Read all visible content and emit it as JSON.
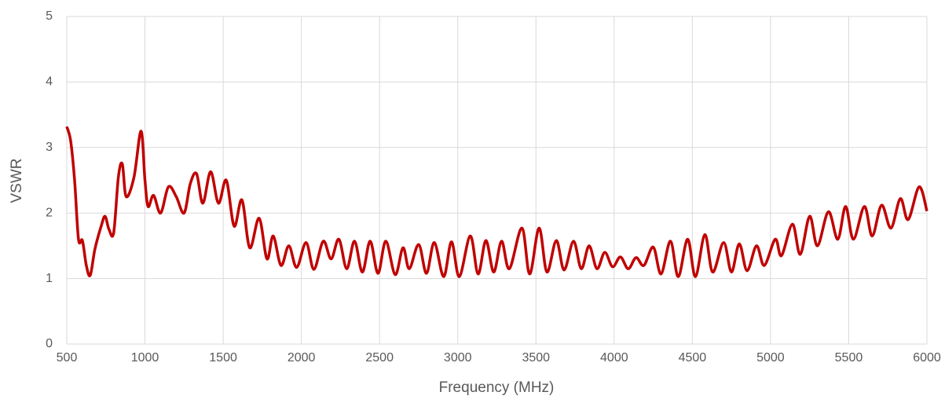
{
  "chart_data": {
    "type": "line",
    "x_label": "Frequency (MHz)",
    "y_label": "VSWR",
    "x": [
      500,
      525,
      550,
      575,
      600,
      625,
      650,
      680,
      720,
      745,
      770,
      800,
      830,
      855,
      880,
      930,
      975,
      1000,
      1020,
      1055,
      1100,
      1150,
      1200,
      1250,
      1290,
      1330,
      1370,
      1420,
      1470,
      1520,
      1570,
      1620,
      1670,
      1730,
      1780,
      1820,
      1870,
      1920,
      1970,
      2030,
      2080,
      2140,
      2190,
      2240,
      2290,
      2340,
      2390,
      2440,
      2490,
      2540,
      2600,
      2650,
      2690,
      2750,
      2800,
      2850,
      2910,
      2960,
      3010,
      3080,
      3130,
      3180,
      3230,
      3280,
      3330,
      3410,
      3460,
      3520,
      3570,
      3630,
      3680,
      3740,
      3790,
      3840,
      3890,
      3940,
      3990,
      4040,
      4090,
      4140,
      4190,
      4250,
      4300,
      4360,
      4410,
      4470,
      4520,
      4580,
      4630,
      4700,
      4750,
      4800,
      4850,
      4910,
      4960,
      5030,
      5070,
      5140,
      5190,
      5250,
      5300,
      5370,
      5430,
      5480,
      5530,
      5600,
      5650,
      5710,
      5770,
      5830,
      5880,
      5950,
      6000
    ],
    "series": [
      {
        "name": "VSWR",
        "color": "#c00000",
        "values": [
          3.32,
          3.1,
          2.5,
          1.6,
          1.58,
          1.2,
          1.05,
          1.45,
          1.8,
          1.95,
          1.75,
          1.7,
          2.55,
          2.75,
          2.25,
          2.55,
          3.25,
          2.5,
          2.1,
          2.27,
          2.0,
          2.4,
          2.25,
          2.0,
          2.45,
          2.6,
          2.15,
          2.63,
          2.15,
          2.5,
          1.8,
          2.2,
          1.47,
          1.92,
          1.3,
          1.65,
          1.2,
          1.5,
          1.17,
          1.55,
          1.14,
          1.57,
          1.3,
          1.6,
          1.15,
          1.57,
          1.1,
          1.57,
          1.08,
          1.57,
          1.06,
          1.47,
          1.15,
          1.52,
          1.08,
          1.55,
          1.03,
          1.56,
          1.03,
          1.65,
          1.07,
          1.58,
          1.1,
          1.57,
          1.15,
          1.77,
          1.07,
          1.77,
          1.1,
          1.58,
          1.13,
          1.57,
          1.15,
          1.5,
          1.15,
          1.4,
          1.18,
          1.33,
          1.15,
          1.32,
          1.2,
          1.48,
          1.07,
          1.57,
          1.03,
          1.6,
          1.03,
          1.67,
          1.1,
          1.55,
          1.1,
          1.53,
          1.12,
          1.5,
          1.2,
          1.6,
          1.35,
          1.83,
          1.37,
          1.95,
          1.5,
          2.02,
          1.6,
          2.1,
          1.6,
          2.1,
          1.65,
          2.12,
          1.77,
          2.22,
          1.9,
          2.4,
          2.03
        ]
      }
    ],
    "xlim": [
      500,
      6000
    ],
    "xticks": [
      500,
      1000,
      1500,
      2000,
      2500,
      3000,
      3500,
      4000,
      4500,
      5000,
      5500,
      6000
    ],
    "ylim": [
      0,
      5
    ],
    "yticks": [
      0,
      1,
      2,
      3,
      4,
      5
    ],
    "grid": true
  }
}
